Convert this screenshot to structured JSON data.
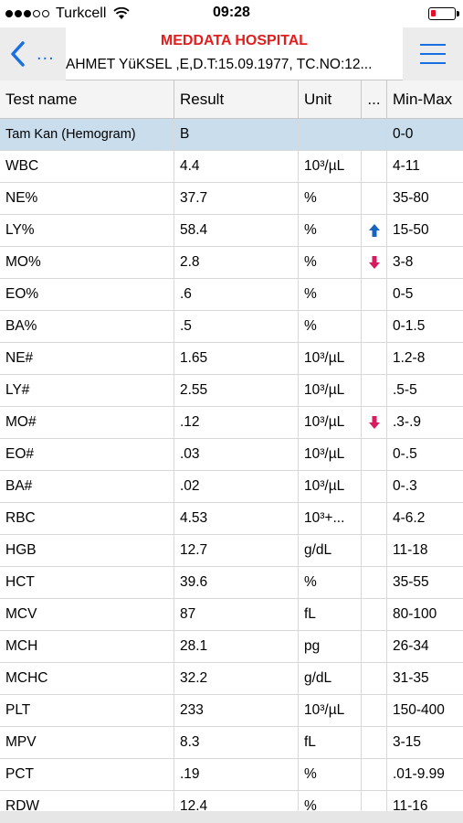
{
  "status": {
    "carrier": "Turkcell",
    "time": "09:28"
  },
  "nav": {
    "back_dots": "...",
    "title": "MEDDATA HOSPITAL",
    "patient": "AHMET YüKSEL ,E,D.T:15.09.1977, TC.NO:12..."
  },
  "table": {
    "headers": {
      "name": "Test name",
      "result": "Result",
      "unit": "Unit",
      "flag": "...",
      "range": "Min-Max"
    },
    "group": {
      "name": "Tam Kan (Hemogram)",
      "result": "B",
      "unit": "",
      "range": "0-0"
    },
    "rows": [
      {
        "name": "WBC",
        "result": "4.4",
        "unit": "10³/µL",
        "flag": "",
        "range": "4-11"
      },
      {
        "name": "NE%",
        "result": "37.7",
        "unit": "%",
        "flag": "",
        "range": "35-80"
      },
      {
        "name": "LY%",
        "result": "58.4",
        "unit": "%",
        "flag": "up",
        "range": "15-50"
      },
      {
        "name": "MO%",
        "result": "2.8",
        "unit": "%",
        "flag": "down",
        "range": "3-8"
      },
      {
        "name": "EO%",
        "result": ".6",
        "unit": "%",
        "flag": "",
        "range": "0-5"
      },
      {
        "name": "BA%",
        "result": ".5",
        "unit": "%",
        "flag": "",
        "range": "0-1.5"
      },
      {
        "name": "NE#",
        "result": "1.65",
        "unit": "10³/µL",
        "flag": "",
        "range": "1.2-8"
      },
      {
        "name": "LY#",
        "result": "2.55",
        "unit": "10³/µL",
        "flag": "",
        "range": ".5-5"
      },
      {
        "name": "MO#",
        "result": ".12",
        "unit": "10³/µL",
        "flag": "down",
        "range": ".3-.9"
      },
      {
        "name": "EO#",
        "result": ".03",
        "unit": "10³/µL",
        "flag": "",
        "range": "0-.5"
      },
      {
        "name": "BA#",
        "result": ".02",
        "unit": "10³/µL",
        "flag": "",
        "range": "0-.3"
      },
      {
        "name": "RBC",
        "result": "4.53",
        "unit": "10³+...",
        "flag": "",
        "range": "4-6.2"
      },
      {
        "name": "HGB",
        "result": "12.7",
        "unit": "g/dL",
        "flag": "",
        "range": "11-18"
      },
      {
        "name": "HCT",
        "result": "39.6",
        "unit": "%",
        "flag": "",
        "range": "35-55"
      },
      {
        "name": "MCV",
        "result": "87",
        "unit": "fL",
        "flag": "",
        "range": "80-100"
      },
      {
        "name": "MCH",
        "result": "28.1",
        "unit": "pg",
        "flag": "",
        "range": "26-34"
      },
      {
        "name": "MCHC",
        "result": "32.2",
        "unit": "g/dL",
        "flag": "",
        "range": "31-35"
      },
      {
        "name": "PLT",
        "result": "233",
        "unit": "10³/µL",
        "flag": "",
        "range": "150-400"
      },
      {
        "name": "MPV",
        "result": "8.3",
        "unit": "fL",
        "flag": "",
        "range": "3-15"
      },
      {
        "name": "PCT",
        "result": ".19",
        "unit": "%",
        "flag": "",
        "range": ".01-9.99"
      },
      {
        "name": "RDW",
        "result": "12.4",
        "unit": "%",
        "flag": "",
        "range": "11-16"
      }
    ]
  },
  "colors": {
    "accent": "#1a6fe0",
    "title_red": "#e21d1d",
    "group_bg": "#c9dded",
    "flag_up": "#1565c0",
    "flag_down": "#d81b60"
  }
}
